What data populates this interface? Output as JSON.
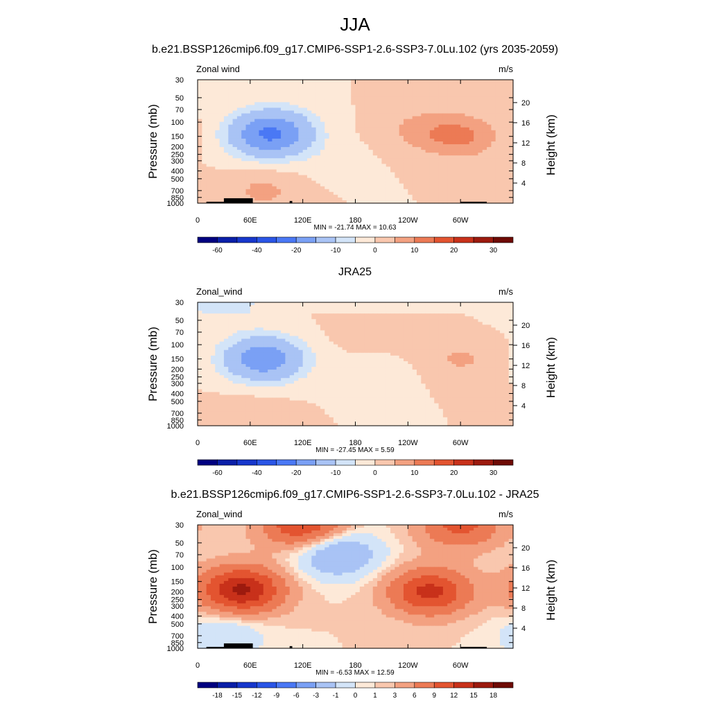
{
  "figure": {
    "title": "JJA"
  },
  "colors": {
    "full_scale": [
      "#000080",
      "#0a1fa8",
      "#1737cc",
      "#2a55e6",
      "#4a78f5",
      "#7aa0f5",
      "#a9c3f5",
      "#d3e4f8",
      "#fde9d8",
      "#f9c7ae",
      "#f3a181",
      "#ec7a55",
      "#e35430",
      "#c8311a",
      "#9c1a0e",
      "#6e0b05"
    ],
    "diff_scale": [
      "#000080",
      "#0a1fa8",
      "#1737cc",
      "#2a55e6",
      "#4a78f5",
      "#7aa0f5",
      "#a9c3f5",
      "#d3e4f8",
      "#fde9d8",
      "#f9c7ae",
      "#f3a181",
      "#ec7a55",
      "#e35430",
      "#c8311a",
      "#9c1a0e",
      "#6e0b05"
    ],
    "land": "#000000"
  },
  "chart_data": [
    {
      "type": "heatmap",
      "title": "b.e21.BSSP126cmip6.f09_g17.CMIP6-SSP1-2.6-SSP3-7.0Lu.102 (yrs 2035-2059)",
      "left_label": "Zonal wind",
      "right_label": "m/s",
      "xlabel": "",
      "ylabel": "Pressure (mb)",
      "y2label": "Height (km)",
      "x_ticks": [
        "0",
        "60E",
        "120E",
        "180",
        "120W",
        "60W"
      ],
      "y_ticks": [
        "30",
        "50",
        "70",
        "100",
        "150",
        "200",
        "250",
        "300",
        "400",
        "500",
        "700",
        "850",
        "1000"
      ],
      "y2_ticks": [
        "20",
        "16",
        "12",
        "8",
        "4"
      ],
      "minmax_text": "MIN = -21.74  MAX =  10.63",
      "min": -21.74,
      "max": 10.63,
      "colorbar_labels": [
        "-60",
        "-40",
        "-20",
        "-10",
        "0",
        "10",
        "20",
        "30"
      ],
      "colormap": "full_scale",
      "features": [
        {
          "lon": 80,
          "p": 150,
          "value": -21.7
        },
        {
          "lon": 90,
          "p": 120,
          "value": -12
        },
        {
          "lon": 300,
          "p": 150,
          "value": 10.6
        },
        {
          "lon": 250,
          "p": 120,
          "value": 5
        },
        {
          "lon": 75,
          "p": 700,
          "value": 6
        },
        {
          "lon": 150,
          "p": 300,
          "value": -2
        }
      ]
    },
    {
      "type": "heatmap",
      "title": "JRA25",
      "left_label": "Zonal_wind",
      "right_label": "m/s",
      "xlabel": "",
      "ylabel": "Pressure (mb)",
      "y2label": "Height (km)",
      "x_ticks": [
        "0",
        "60E",
        "120E",
        "180",
        "120W",
        "60W"
      ],
      "y_ticks": [
        "30",
        "50",
        "70",
        "100",
        "150",
        "200",
        "250",
        "300",
        "400",
        "500",
        "700",
        "850",
        "1000"
      ],
      "y2_ticks": [
        "20",
        "16",
        "12",
        "8",
        "4"
      ],
      "minmax_text": "MIN = -27.45  MAX =   5.59",
      "min": -27.45,
      "max": 5.59,
      "colorbar_labels": [
        "-60",
        "-40",
        "-20",
        "-10",
        "0",
        "10",
        "20",
        "30"
      ],
      "colormap": "full_scale",
      "features": [
        {
          "lon": 75,
          "p": 150,
          "value": -27.4
        },
        {
          "lon": 300,
          "p": 150,
          "value": 5.6
        },
        {
          "lon": 200,
          "p": 70,
          "value": 3
        },
        {
          "lon": 200,
          "p": 250,
          "value": -4
        },
        {
          "lon": 30,
          "p": 30,
          "value": -5
        },
        {
          "lon": 60,
          "p": 700,
          "value": 3
        }
      ]
    },
    {
      "type": "heatmap",
      "title": "b.e21.BSSP126cmip6.f09_g17.CMIP6-SSP1-2.6-SSP3-7.0Lu.102 - JRA25",
      "left_label": "Zonal_wind",
      "right_label": "m/s",
      "xlabel": "",
      "ylabel": "Pressure (mb)",
      "y2label": "Height (km)",
      "x_ticks": [
        "0",
        "60E",
        "120E",
        "180",
        "120W",
        "60W"
      ],
      "y_ticks": [
        "30",
        "50",
        "70",
        "100",
        "150",
        "200",
        "250",
        "300",
        "400",
        "500",
        "700",
        "850",
        "1000"
      ],
      "y2_ticks": [
        "20",
        "16",
        "12",
        "8",
        "4"
      ],
      "minmax_text": "MIN =  -6.53  MAX =  12.59",
      "min": -6.53,
      "max": 12.59,
      "colorbar_labels": [
        "-18",
        "-15",
        "-12",
        "-9",
        "-6",
        "-3",
        "-1",
        "0",
        "1",
        "3",
        "6",
        "9",
        "12",
        "15",
        "18"
      ],
      "colormap": "diff_scale",
      "features": [
        {
          "lon": 50,
          "p": 190,
          "value": 12.6
        },
        {
          "lon": 265,
          "p": 200,
          "value": 10
        },
        {
          "lon": 160,
          "p": 70,
          "value": -6.5
        },
        {
          "lon": 120,
          "p": 30,
          "value": 9
        },
        {
          "lon": 300,
          "p": 30,
          "value": 7
        },
        {
          "lon": 30,
          "p": 700,
          "value": -3
        }
      ]
    }
  ]
}
